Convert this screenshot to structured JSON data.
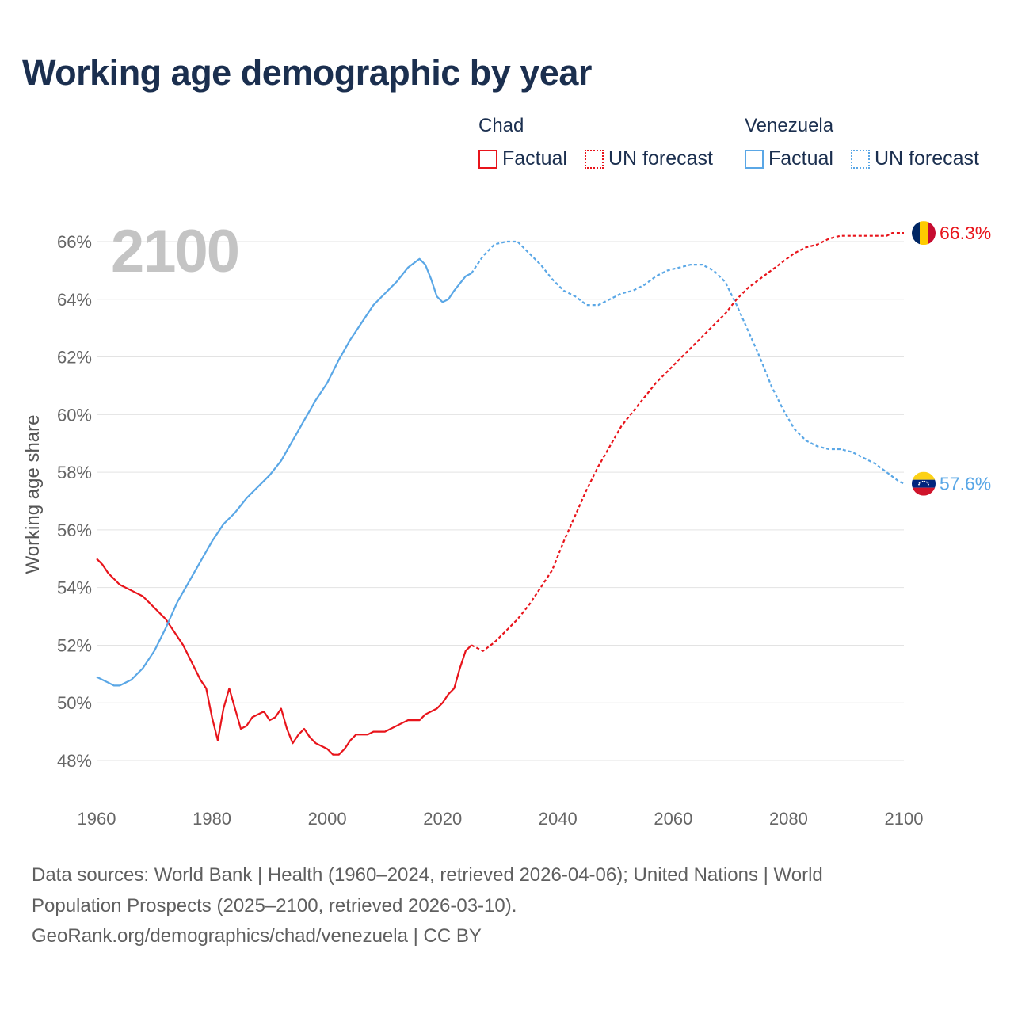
{
  "title": "Working age demographic by year",
  "legend": {
    "groups": [
      {
        "name": "Chad",
        "color": "#e8141b",
        "factual_label": "Factual",
        "forecast_label": "UN forecast"
      },
      {
        "name": "Venezuela",
        "color": "#5aa7e6",
        "factual_label": "Factual",
        "forecast_label": "UN forecast"
      }
    ]
  },
  "year_display": "2100",
  "footer": {
    "line1": "Data sources: World Bank | Health (1960–2024, retrieved 2026-04-06); United Nations | World",
    "line2": "Population Prospects (2025–2100, retrieved 2026-03-10).",
    "line3": "GeoRank.org/demographics/chad/venezuela | CC BY"
  },
  "chart_data": {
    "type": "line",
    "title": "Working age demographic by year",
    "xlabel": "",
    "ylabel": "Working age share",
    "xlim": [
      1960,
      2100
    ],
    "ylim": [
      47,
      67
    ],
    "x_ticks": [
      1960,
      1980,
      2000,
      2020,
      2040,
      2060,
      2080,
      2100
    ],
    "y_ticks": [
      48,
      50,
      52,
      54,
      56,
      58,
      60,
      62,
      64,
      66
    ],
    "y_tick_suffix": "%",
    "grid": true,
    "series": [
      {
        "name": "Chad",
        "color": "#e8141b",
        "end_label": "66.3%",
        "factual": [
          [
            1960,
            55.0
          ],
          [
            1961,
            54.8
          ],
          [
            1962,
            54.5
          ],
          [
            1964,
            54.1
          ],
          [
            1966,
            53.9
          ],
          [
            1968,
            53.7
          ],
          [
            1970,
            53.3
          ],
          [
            1972,
            52.9
          ],
          [
            1975,
            52.0
          ],
          [
            1978,
            50.8
          ],
          [
            1979,
            50.5
          ],
          [
            1980,
            49.5
          ],
          [
            1981,
            48.7
          ],
          [
            1982,
            49.8
          ],
          [
            1983,
            50.5
          ],
          [
            1984,
            49.8
          ],
          [
            1985,
            49.1
          ],
          [
            1986,
            49.2
          ],
          [
            1987,
            49.5
          ],
          [
            1989,
            49.7
          ],
          [
            1990,
            49.4
          ],
          [
            1991,
            49.5
          ],
          [
            1992,
            49.8
          ],
          [
            1993,
            49.1
          ],
          [
            1994,
            48.6
          ],
          [
            1995,
            48.9
          ],
          [
            1996,
            49.1
          ],
          [
            1997,
            48.8
          ],
          [
            1998,
            48.6
          ],
          [
            2000,
            48.4
          ],
          [
            2001,
            48.2
          ],
          [
            2002,
            48.2
          ],
          [
            2003,
            48.4
          ],
          [
            2004,
            48.7
          ],
          [
            2005,
            48.9
          ],
          [
            2007,
            48.9
          ],
          [
            2008,
            49.0
          ],
          [
            2010,
            49.0
          ],
          [
            2012,
            49.2
          ],
          [
            2014,
            49.4
          ],
          [
            2016,
            49.4
          ],
          [
            2017,
            49.6
          ],
          [
            2019,
            49.8
          ],
          [
            2020,
            50.0
          ],
          [
            2021,
            50.3
          ],
          [
            2022,
            50.5
          ],
          [
            2023,
            51.2
          ],
          [
            2024,
            51.8
          ],
          [
            2025,
            52.0
          ]
        ],
        "forecast": [
          [
            2025,
            52.0
          ],
          [
            2027,
            51.8
          ],
          [
            2029,
            52.1
          ],
          [
            2031,
            52.5
          ],
          [
            2033,
            52.9
          ],
          [
            2035,
            53.4
          ],
          [
            2037,
            54.0
          ],
          [
            2039,
            54.6
          ],
          [
            2041,
            55.6
          ],
          [
            2043,
            56.5
          ],
          [
            2045,
            57.4
          ],
          [
            2047,
            58.2
          ],
          [
            2049,
            58.9
          ],
          [
            2051,
            59.6
          ],
          [
            2053,
            60.1
          ],
          [
            2055,
            60.6
          ],
          [
            2057,
            61.1
          ],
          [
            2059,
            61.5
          ],
          [
            2061,
            61.9
          ],
          [
            2063,
            62.3
          ],
          [
            2065,
            62.7
          ],
          [
            2067,
            63.1
          ],
          [
            2069,
            63.5
          ],
          [
            2071,
            64.0
          ],
          [
            2073,
            64.4
          ],
          [
            2075,
            64.7
          ],
          [
            2077,
            65.0
          ],
          [
            2079,
            65.3
          ],
          [
            2081,
            65.6
          ],
          [
            2083,
            65.8
          ],
          [
            2085,
            65.9
          ],
          [
            2087,
            66.1
          ],
          [
            2089,
            66.2
          ],
          [
            2091,
            66.2
          ],
          [
            2093,
            66.2
          ],
          [
            2095,
            66.2
          ],
          [
            2097,
            66.2
          ],
          [
            2098,
            66.3
          ],
          [
            2100,
            66.3
          ]
        ]
      },
      {
        "name": "Venezuela",
        "color": "#5aa7e6",
        "end_label": "57.6%",
        "factual": [
          [
            1960,
            50.9
          ],
          [
            1962,
            50.7
          ],
          [
            1963,
            50.6
          ],
          [
            1964,
            50.6
          ],
          [
            1966,
            50.8
          ],
          [
            1968,
            51.2
          ],
          [
            1970,
            51.8
          ],
          [
            1972,
            52.6
          ],
          [
            1974,
            53.5
          ],
          [
            1976,
            54.2
          ],
          [
            1978,
            54.9
          ],
          [
            1980,
            55.6
          ],
          [
            1982,
            56.2
          ],
          [
            1984,
            56.6
          ],
          [
            1986,
            57.1
          ],
          [
            1988,
            57.5
          ],
          [
            1990,
            57.9
          ],
          [
            1992,
            58.4
          ],
          [
            1994,
            59.1
          ],
          [
            1996,
            59.8
          ],
          [
            1998,
            60.5
          ],
          [
            2000,
            61.1
          ],
          [
            2002,
            61.9
          ],
          [
            2004,
            62.6
          ],
          [
            2006,
            63.2
          ],
          [
            2008,
            63.8
          ],
          [
            2010,
            64.2
          ],
          [
            2012,
            64.6
          ],
          [
            2014,
            65.1
          ],
          [
            2016,
            65.4
          ],
          [
            2017,
            65.2
          ],
          [
            2018,
            64.7
          ],
          [
            2019,
            64.1
          ],
          [
            2020,
            63.9
          ],
          [
            2021,
            64.0
          ],
          [
            2022,
            64.3
          ],
          [
            2024,
            64.8
          ],
          [
            2025,
            64.9
          ]
        ],
        "forecast": [
          [
            2025,
            64.9
          ],
          [
            2027,
            65.5
          ],
          [
            2029,
            65.9
          ],
          [
            2031,
            66.0
          ],
          [
            2033,
            66.0
          ],
          [
            2035,
            65.6
          ],
          [
            2037,
            65.2
          ],
          [
            2039,
            64.7
          ],
          [
            2041,
            64.3
          ],
          [
            2043,
            64.1
          ],
          [
            2045,
            63.8
          ],
          [
            2047,
            63.8
          ],
          [
            2049,
            64.0
          ],
          [
            2051,
            64.2
          ],
          [
            2053,
            64.3
          ],
          [
            2055,
            64.5
          ],
          [
            2057,
            64.8
          ],
          [
            2059,
            65.0
          ],
          [
            2061,
            65.1
          ],
          [
            2063,
            65.2
          ],
          [
            2065,
            65.2
          ],
          [
            2067,
            65.0
          ],
          [
            2069,
            64.6
          ],
          [
            2071,
            63.8
          ],
          [
            2073,
            62.9
          ],
          [
            2075,
            62.0
          ],
          [
            2077,
            61.0
          ],
          [
            2079,
            60.2
          ],
          [
            2081,
            59.5
          ],
          [
            2083,
            59.1
          ],
          [
            2085,
            58.9
          ],
          [
            2087,
            58.8
          ],
          [
            2089,
            58.8
          ],
          [
            2091,
            58.7
          ],
          [
            2093,
            58.5
          ],
          [
            2095,
            58.3
          ],
          [
            2097,
            58.0
          ],
          [
            2099,
            57.7
          ],
          [
            2100,
            57.6
          ]
        ]
      }
    ]
  }
}
